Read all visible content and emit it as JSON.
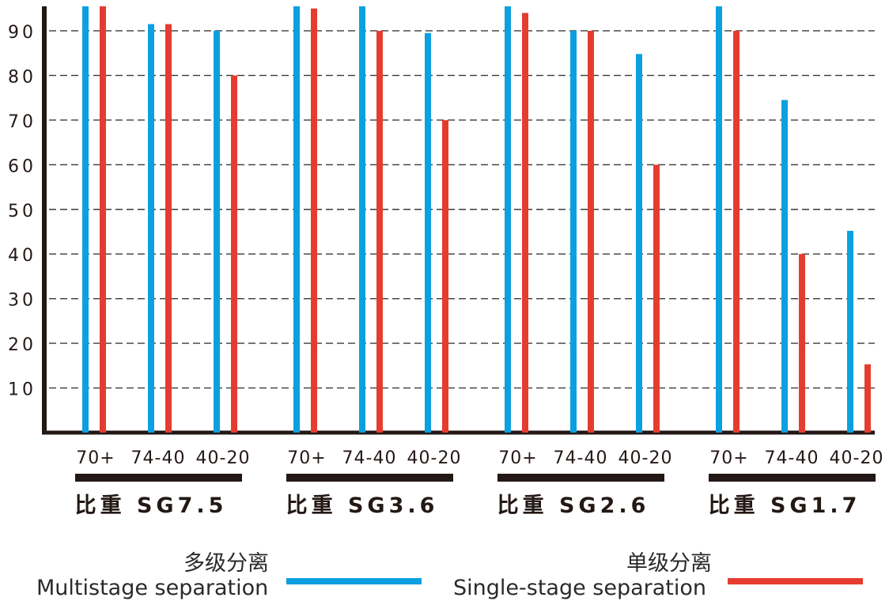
{
  "colors": {
    "multistage": "#0ca0e0",
    "single_stage": "#e63c2f",
    "axis": "#231815",
    "grid": "#3a3a3a",
    "text": "#231815"
  },
  "legend": {
    "multistage_zh": "多级分离",
    "multistage_en": "Multistage separation",
    "single_stage_zh": "单级分离",
    "single_stage_en": "Single-stage separation"
  },
  "chart_data": {
    "type": "bar",
    "grid": true,
    "ylim": [
      0,
      96
    ],
    "yticks": [
      "10",
      "20",
      "30",
      "40",
      "50",
      "60",
      "70",
      "80",
      "90"
    ],
    "groups": [
      {
        "label": "比重 SG7.5",
        "categories": [
          "70+",
          "74-40",
          "40-20"
        ],
        "series": [
          {
            "name": "多级分离 Multistage separation",
            "values": [
              96,
              91.5,
              90
            ]
          },
          {
            "name": "单级分离 Single-stage separation",
            "values": [
              96,
              91.5,
              80
            ]
          }
        ]
      },
      {
        "label": "比重 SG3.6",
        "categories": [
          "70+",
          "74-40",
          "40-20"
        ],
        "series": [
          {
            "name": "多级分离 Multistage separation",
            "values": [
              96,
              96,
              89.5
            ]
          },
          {
            "name": "单级分离 Single-stage separation",
            "values": [
              95,
              90,
              70
            ]
          }
        ]
      },
      {
        "label": "比重 SG2.6",
        "categories": [
          "70+",
          "74-40",
          "40-20"
        ],
        "series": [
          {
            "name": "多级分离 Multistage separation",
            "values": [
              96,
              90,
              84.8
            ]
          },
          {
            "name": "单级分离 Single-stage separation",
            "values": [
              94,
              90,
              60
            ]
          }
        ]
      },
      {
        "label": "比重 SG1.7",
        "categories": [
          "70+",
          "74-40",
          "40-20"
        ],
        "series": [
          {
            "name": "多级分离 Multistage separation",
            "values": [
              96,
              74.5,
              45.2
            ]
          },
          {
            "name": "单级分离 Single-stage separation",
            "values": [
              90,
              40,
              15.3
            ]
          }
        ]
      }
    ]
  }
}
